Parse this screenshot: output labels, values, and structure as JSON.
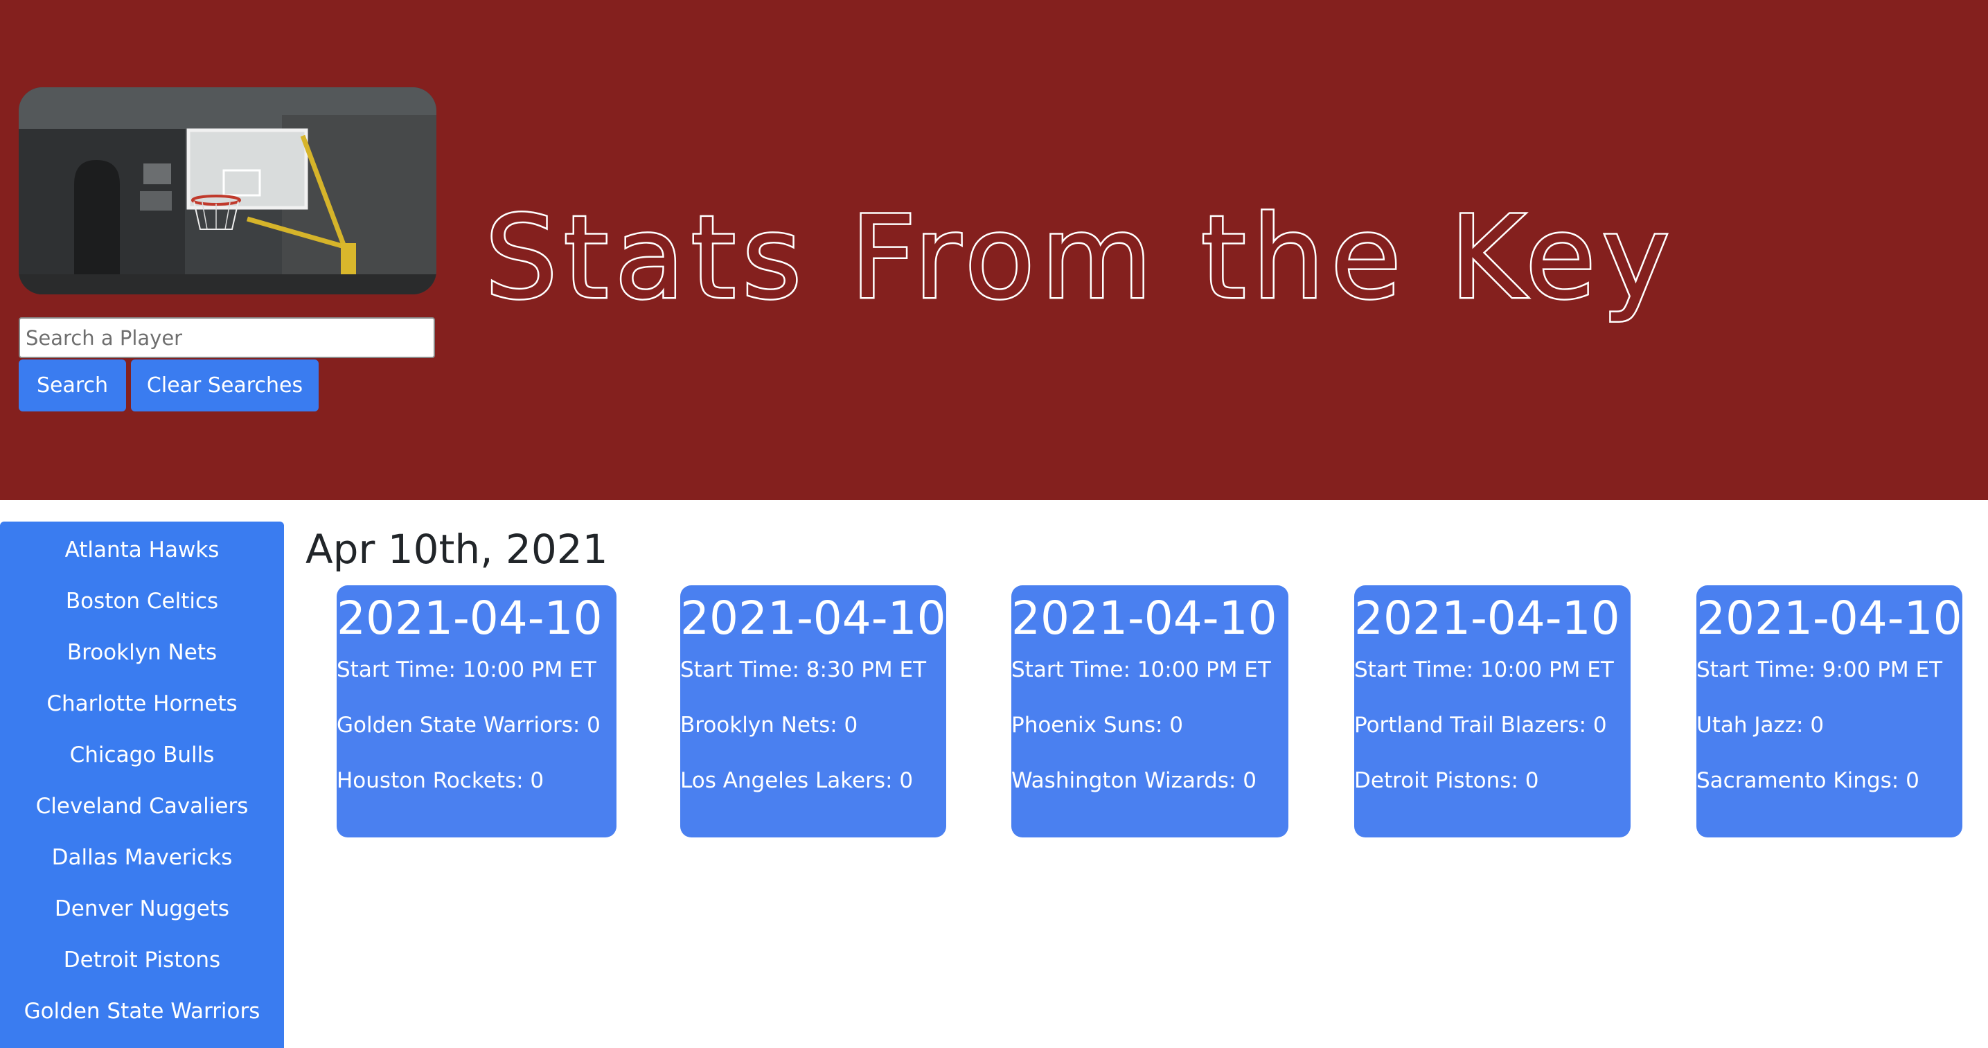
{
  "header": {
    "title": "Stats From the Key",
    "search": {
      "placeholder": "Search a Player",
      "value": ""
    },
    "search_button_label": "Search",
    "clear_button_label": "Clear Searches",
    "hero_image": "basketball-hoop-photo"
  },
  "sidebar": {
    "items": [
      {
        "label": "Atlanta Hawks"
      },
      {
        "label": "Boston Celtics"
      },
      {
        "label": "Brooklyn Nets"
      },
      {
        "label": "Charlotte Hornets"
      },
      {
        "label": "Chicago Bulls"
      },
      {
        "label": "Cleveland Cavaliers"
      },
      {
        "label": "Dallas Mavericks"
      },
      {
        "label": "Denver Nuggets"
      },
      {
        "label": "Detroit Pistons"
      },
      {
        "label": "Golden State Warriors"
      }
    ]
  },
  "main": {
    "date_heading": "Apr 10th, 2021",
    "games": [
      {
        "date": "2021-04-10",
        "start_time": "Start Time: 10:00 PM ET",
        "team_a": "Golden State Warriors: 0",
        "team_b": "Houston Rockets: 0"
      },
      {
        "date": "2021-04-10",
        "start_time": "Start Time: 8:30 PM ET",
        "team_a": "Brooklyn Nets: 0",
        "team_b": "Los Angeles Lakers: 0"
      },
      {
        "date": "2021-04-10",
        "start_time": "Start Time: 10:00 PM ET",
        "team_a": "Phoenix Suns: 0",
        "team_b": "Washington Wizards: 0"
      },
      {
        "date": "2021-04-10",
        "start_time": "Start Time: 10:00 PM ET",
        "team_a": "Portland Trail Blazers: 0",
        "team_b": "Detroit Pistons: 0"
      },
      {
        "date": "2021-04-10",
        "start_time": "Start Time: 9:00 PM ET",
        "team_a": "Utah Jazz: 0",
        "team_b": "Sacramento Kings: 0"
      }
    ]
  },
  "colors": {
    "header_bg": "#84201e",
    "accent": "#3a7cf0",
    "card_bg": "#4a80f0",
    "text_dark": "#212529"
  }
}
